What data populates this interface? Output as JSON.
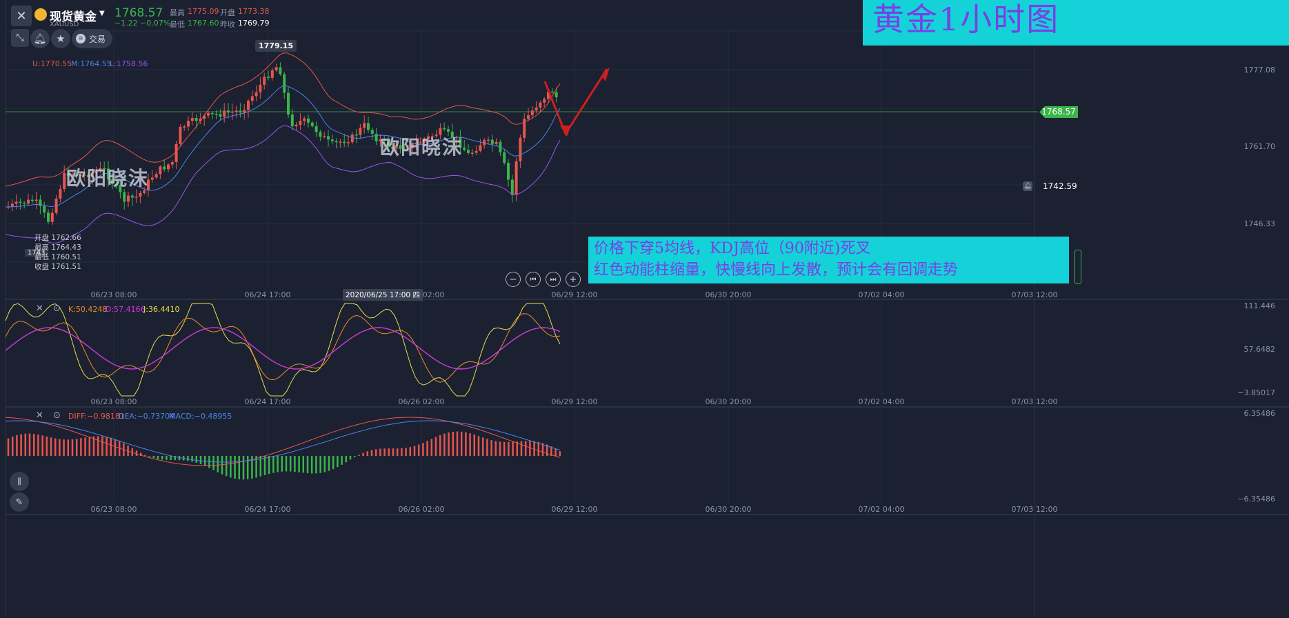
{
  "header": {
    "close_glyph": "✕",
    "symbol_name": "现货黄金",
    "symbol_code": "XAUUSD",
    "price": "1768.57",
    "change": "−1.22",
    "change_pct": "−0.07%",
    "high_label": "最高",
    "high_value": "1775.09",
    "open_label": "开盘",
    "open_value": "1773.38",
    "low_label": "最低",
    "low_value": "1767.60",
    "prev_close_label": "昨收",
    "prev_close_value": "1769.79",
    "trade_label": "交易",
    "up_color": "#e8554e",
    "down_color": "#3ab54a"
  },
  "banner": {
    "title": "黄金1小时图",
    "bg": "#14d2d8",
    "text_color": "#7b3fe4"
  },
  "main_chart": {
    "boll": {
      "u": "U:1770.55",
      "m": "M:1764.55",
      "l": "L:1758.56",
      "u_color": "#e8554e",
      "m_color": "#4b84e8",
      "l_color": "#9a55f0"
    },
    "peak_tag": "1779.15",
    "price_axis": [
      "1777.08",
      "1761.70",
      "1746.33"
    ],
    "current_price_tag": "1768.57",
    "alert_price_tag": "1742.59",
    "left_price_tag": "1743",
    "ohlc_popup": {
      "open_label": "开盘",
      "open_value": "1762.66",
      "high_label": "最高",
      "high_value": "1764.43",
      "low_label": "最低",
      "low_value": "1760.51",
      "close_label": "收盘",
      "close_value": "1761.51"
    },
    "watermark": "欧阳晓沫",
    "crosshair_time": "2020/06/25 17:00 四",
    "time_axis": [
      "06/23 08:00",
      "06/24 17:00",
      "06/26 02:00",
      "06/29 12:00",
      "06/30 20:00",
      "07/02 04:00",
      "07/03 12:00"
    ],
    "annotation": {
      "line1": "价格下穿5均线，KDJ高位（90附近)死叉",
      "line2": "红色动能柱缩量，快慢线向上发散，预计会有回调走势",
      "bg": "#14d2d8",
      "text_color": "#7b3fe4"
    }
  },
  "kdj": {
    "k": "K:50.4248",
    "d": "D:57.4166",
    "j": "J:36.4410",
    "k_color": "#f0892e",
    "d_color": "#d23ad9",
    "j_color": "#e8e048",
    "axis": [
      "111.446",
      "57.6482",
      "−3.85017"
    ]
  },
  "macd": {
    "diff": "DIFF:−0.98181",
    "dea": "DEA:−0.73704",
    "macd": "MACD:−0.48955",
    "diff_color": "#e8554e",
    "dea_color": "#4b84e8",
    "macd_color": "#4b84e8",
    "axis": [
      "6.35486",
      "−6.35486"
    ]
  }
}
